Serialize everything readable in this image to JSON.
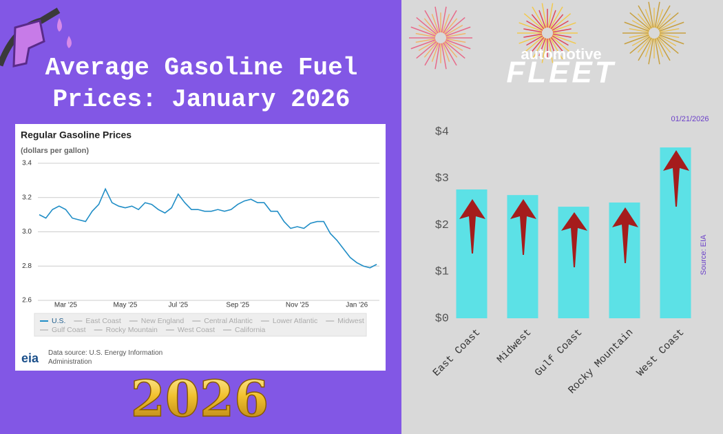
{
  "header": {
    "title": "Average Gasoline Fuel Prices: January 2026",
    "badge": "2026",
    "logo_top": "automotive",
    "logo_bottom": "FLEET"
  },
  "chart_data": [
    {
      "type": "line",
      "title": "Regular Gasoline Prices",
      "subtitle": "(dollars per gallon)",
      "categories": [
        null,
        null,
        null,
        null,
        "Mar '25",
        null,
        null,
        null,
        null,
        null,
        null,
        null,
        null,
        "May '25",
        null,
        null,
        null,
        null,
        null,
        null,
        null,
        "Jul '25",
        null,
        null,
        null,
        null,
        null,
        null,
        null,
        null,
        "Sep '25",
        null,
        null,
        null,
        null,
        null,
        null,
        null,
        null,
        "Nov '25",
        null,
        null,
        null,
        null,
        null,
        null,
        null,
        null,
        "Jan '26",
        null,
        null,
        null
      ],
      "series": [
        {
          "name": "U.S.",
          "color": "#1f8dc6",
          "values": [
            3.1,
            3.08,
            3.13,
            3.15,
            3.13,
            3.08,
            3.07,
            3.06,
            3.12,
            3.16,
            3.25,
            3.17,
            3.15,
            3.14,
            3.15,
            3.13,
            3.17,
            3.16,
            3.13,
            3.11,
            3.14,
            3.22,
            3.17,
            3.13,
            3.13,
            3.12,
            3.12,
            3.13,
            3.12,
            3.13,
            3.16,
            3.18,
            3.19,
            3.17,
            3.17,
            3.12,
            3.12,
            3.06,
            3.02,
            3.03,
            3.02,
            3.05,
            3.06,
            3.06,
            2.99,
            2.95,
            2.9,
            2.85,
            2.82,
            2.8,
            2.79,
            2.81
          ]
        }
      ],
      "inactive_series": [
        "East Coast",
        "New England",
        "Central Atlantic",
        "Lower Atlantic",
        "Midwest",
        "Gulf Coast",
        "Rocky Mountain",
        "West Coast",
        "California"
      ],
      "ylim": [
        2.6,
        3.4
      ],
      "yticks": [
        2.6,
        2.8,
        {
          "value": 3,
          "label": "3.0"
        },
        3.2,
        3.4
      ],
      "grid": true,
      "source": "Data source: U.S. Energy Information Administration",
      "logo": "eia"
    },
    {
      "type": "bar",
      "categories": [
        "East Coast",
        "Midwest",
        "Gulf Coast",
        "Rocky Mountain",
        "West Coast"
      ],
      "values": [
        2.76,
        2.64,
        2.39,
        2.48,
        3.66
      ],
      "color": "#5ce1e6",
      "ylim": [
        0,
        4
      ],
      "yticks": [
        {
          "value": 0,
          "label": "$0"
        },
        {
          "value": 1,
          "label": "$1"
        },
        {
          "value": 2,
          "label": "$2"
        },
        {
          "value": 3,
          "label": "$3"
        },
        {
          "value": 4,
          "label": "$4"
        }
      ],
      "grid": false,
      "date": "01/21/2026",
      "source": "Source: EIA"
    }
  ]
}
